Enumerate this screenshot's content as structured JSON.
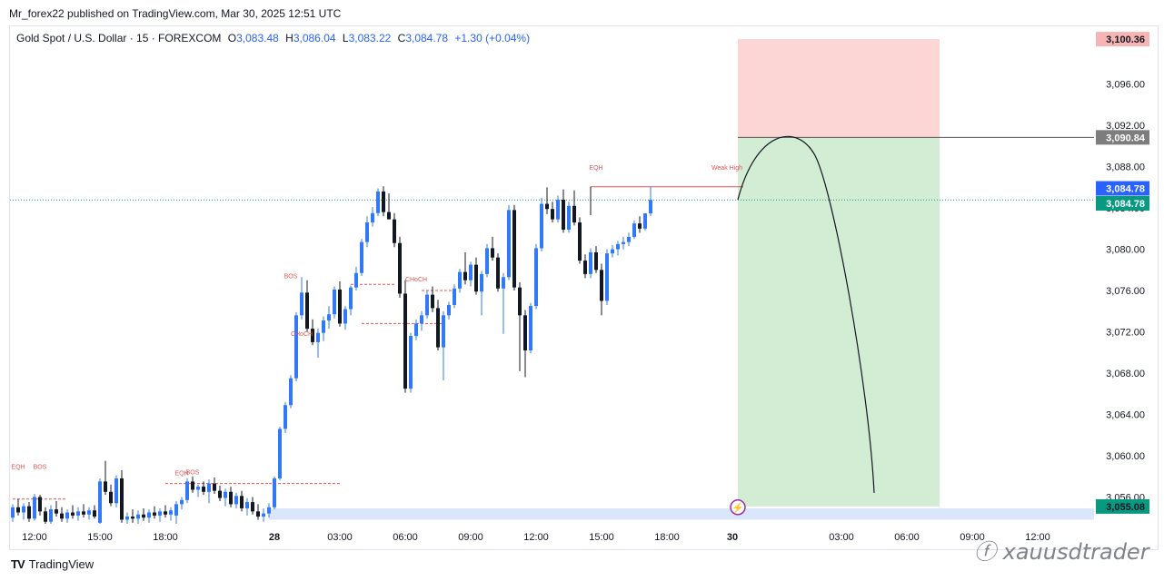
{
  "header": {
    "publish_line": "Mr_forex22 published on TradingView.com, Mar 30, 2025 12:51 UTC"
  },
  "legend": {
    "symbol": "Gold Spot / U.S. Dollar · 15 · FOREXCOM",
    "o_label": "O",
    "o": "3,083.48",
    "h_label": "H",
    "h": "3,086.04",
    "l_label": "L",
    "l": "3,083.22",
    "c_label": "C",
    "c": "3,084.78",
    "change": "+1.30 (+0.04%)"
  },
  "footer": {
    "brand": "TradingView",
    "watermark": "xauusdtrader"
  },
  "colors": {
    "up": "#3179f5",
    "down": "#131722",
    "risk_zone": "#fcd5d5",
    "reward_zone": "#d3ecd4",
    "demand_zone": "#dbe6fa",
    "structure": "#e05555",
    "price_tag_blue": "#2962ff",
    "price_tag_green": "#089981",
    "sl_tag": "#f7b4b4",
    "entry_tag": "#7d7d7d"
  },
  "chart_data": {
    "type": "candlestick",
    "symbol": "XAUUSD",
    "timeframe": "15",
    "ylim": [
      3053.4,
      3101.6
    ],
    "yticks": [
      3056,
      3060,
      3064,
      3068,
      3072,
      3076,
      3080,
      3084,
      3088,
      3092,
      3096
    ],
    "ytick_labels": [
      "3,056.00",
      "3,060.00",
      "3,064.00",
      "3,068.00",
      "3,072.00",
      "3,076.00",
      "3,080.00",
      "3,084.00",
      "3,088.00",
      "3,092.00",
      "3,096.00"
    ],
    "xtick_labels": [
      {
        "label": "12:00",
        "bar": 4,
        "bold": false
      },
      {
        "label": "15:00",
        "bar": 16,
        "bold": false
      },
      {
        "label": "18:00",
        "bar": 28,
        "bold": false
      },
      {
        "label": "28",
        "bar": 48,
        "bold": true
      },
      {
        "label": "03:00",
        "bar": 60,
        "bold": false
      },
      {
        "label": "06:00",
        "bar": 72,
        "bold": false
      },
      {
        "label": "09:00",
        "bar": 84,
        "bold": false
      },
      {
        "label": "12:00",
        "bar": 96,
        "bold": false
      },
      {
        "label": "15:00",
        "bar": 108,
        "bold": false
      },
      {
        "label": "18:00",
        "bar": 120,
        "bold": false
      },
      {
        "label": "30",
        "bar": 132,
        "bold": true
      },
      {
        "label": "03:00",
        "bar": 152,
        "bold": false
      },
      {
        "label": "06:00",
        "bar": 164,
        "bold": false
      },
      {
        "label": "09:00",
        "bar": 176,
        "bold": false
      },
      {
        "label": "12:00",
        "bar": 188,
        "bold": false
      }
    ],
    "candles": [
      [
        3054.0,
        3055.3,
        3053.6,
        3055.0
      ],
      [
        3055.0,
        3055.8,
        3054.2,
        3054.5
      ],
      [
        3054.5,
        3055.4,
        3053.8,
        3055.1
      ],
      [
        3055.1,
        3055.5,
        3053.6,
        3053.9
      ],
      [
        3053.9,
        3056.3,
        3053.7,
        3056.0
      ],
      [
        3056.0,
        3056.2,
        3054.2,
        3054.6
      ],
      [
        3054.6,
        3055.0,
        3053.3,
        3053.6
      ],
      [
        3053.6,
        3055.2,
        3053.4,
        3054.8
      ],
      [
        3054.8,
        3055.6,
        3054.1,
        3054.4
      ],
      [
        3054.4,
        3055.0,
        3053.6,
        3053.9
      ],
      [
        3053.9,
        3054.8,
        3053.5,
        3054.5
      ],
      [
        3054.5,
        3055.2,
        3053.9,
        3054.2
      ],
      [
        3054.2,
        3055.0,
        3053.7,
        3054.6
      ],
      [
        3054.6,
        3055.3,
        3054.0,
        3054.3
      ],
      [
        3054.3,
        3055.0,
        3053.8,
        3054.7
      ],
      [
        3054.7,
        3055.2,
        3053.9,
        3054.1
      ],
      [
        3053.5,
        3057.8,
        3053.2,
        3057.5
      ],
      [
        3057.5,
        3059.5,
        3056.2,
        3056.5
      ],
      [
        3056.5,
        3057.2,
        3055.1,
        3055.4
      ],
      [
        3055.4,
        3058.1,
        3055.0,
        3057.8
      ],
      [
        3057.8,
        3058.6,
        3053.5,
        3053.8
      ],
      [
        3053.8,
        3054.5,
        3053.3,
        3054.1
      ],
      [
        3054.1,
        3054.8,
        3053.5,
        3053.9
      ],
      [
        3053.9,
        3054.7,
        3053.4,
        3054.3
      ],
      [
        3054.3,
        3054.9,
        3053.7,
        3054.0
      ],
      [
        3054.0,
        3054.8,
        3053.5,
        3054.5
      ],
      [
        3054.5,
        3055.1,
        3053.9,
        3054.2
      ],
      [
        3054.2,
        3054.9,
        3053.6,
        3054.6
      ],
      [
        3054.6,
        3055.2,
        3054.0,
        3054.3
      ],
      [
        3054.3,
        3055.0,
        3053.7,
        3054.7
      ],
      [
        3054.2,
        3055.6,
        3053.4,
        3055.3
      ],
      [
        3055.3,
        3056.0,
        3054.8,
        3055.7
      ],
      [
        3055.7,
        3057.8,
        3055.4,
        3057.5
      ],
      [
        3057.5,
        3058.0,
        3056.4,
        3056.7
      ],
      [
        3056.7,
        3057.2,
        3056.0,
        3057.0
      ],
      [
        3057.0,
        3057.5,
        3056.2,
        3056.5
      ],
      [
        3056.5,
        3057.7,
        3055.4,
        3057.3
      ],
      [
        3057.3,
        3057.9,
        3056.3,
        3056.6
      ],
      [
        3056.6,
        3057.1,
        3055.6,
        3055.9
      ],
      [
        3055.9,
        3056.8,
        3055.1,
        3056.5
      ],
      [
        3056.5,
        3057.0,
        3055.0,
        3055.3
      ],
      [
        3055.3,
        3056.4,
        3054.9,
        3056.1
      ],
      [
        3056.1,
        3056.6,
        3054.6,
        3054.9
      ],
      [
        3054.9,
        3055.9,
        3054.2,
        3055.5
      ],
      [
        3055.5,
        3056.0,
        3054.3,
        3054.6
      ],
      [
        3054.6,
        3055.3,
        3053.8,
        3054.1
      ],
      [
        3054.1,
        3054.9,
        3053.6,
        3054.4
      ],
      [
        3054.4,
        3055.4,
        3054.0,
        3055.0
      ],
      [
        3055.0,
        3058.0,
        3054.8,
        3057.8
      ],
      [
        3057.8,
        3062.8,
        3057.6,
        3062.6
      ],
      [
        3062.6,
        3065.2,
        3062.2,
        3064.9
      ],
      [
        3064.9,
        3067.8,
        3064.6,
        3067.5
      ],
      [
        3067.5,
        3073.9,
        3067.2,
        3073.6
      ],
      [
        3073.6,
        3077.3,
        3073.2,
        3075.8
      ],
      [
        3075.8,
        3077.0,
        3072.0,
        3072.3
      ],
      [
        3072.3,
        3073.2,
        3070.7,
        3071.0
      ],
      [
        3071.0,
        3072.3,
        3069.5,
        3071.9
      ],
      [
        3071.9,
        3073.5,
        3071.1,
        3073.1
      ],
      [
        3073.1,
        3074.5,
        3072.3,
        3073.7
      ],
      [
        3073.7,
        3076.4,
        3073.3,
        3076.1
      ],
      [
        3076.1,
        3076.9,
        3072.5,
        3072.8
      ],
      [
        3072.8,
        3074.5,
        3072.2,
        3074.2
      ],
      [
        3074.2,
        3076.5,
        3073.6,
        3076.3
      ],
      [
        3076.3,
        3078.3,
        3076.0,
        3077.7
      ],
      [
        3077.7,
        3081.0,
        3077.4,
        3080.7
      ],
      [
        3080.7,
        3083.2,
        3080.2,
        3082.6
      ],
      [
        3082.6,
        3084.1,
        3082.2,
        3083.5
      ],
      [
        3083.5,
        3085.9,
        3083.2,
        3085.6
      ],
      [
        3085.6,
        3086.1,
        3083.2,
        3083.6
      ],
      [
        3083.6,
        3085.4,
        3083.1,
        3082.9
      ],
      [
        3082.9,
        3083.5,
        3080.2,
        3080.6
      ],
      [
        3080.6,
        3081.2,
        3075.3,
        3075.7
      ],
      [
        3075.7,
        3077.0,
        3066.1,
        3066.5
      ],
      [
        3066.5,
        3071.9,
        3066.1,
        3071.6
      ],
      [
        3071.6,
        3073.2,
        3071.2,
        3072.8
      ],
      [
        3072.8,
        3074.0,
        3072.1,
        3073.6
      ],
      [
        3073.6,
        3076.0,
        3073.3,
        3075.6
      ],
      [
        3075.6,
        3076.4,
        3073.9,
        3074.3
      ],
      [
        3074.3,
        3075.1,
        3070.2,
        3070.5
      ],
      [
        3070.5,
        3074.0,
        3067.3,
        3073.6
      ],
      [
        3073.6,
        3074.9,
        3073.2,
        3074.6
      ],
      [
        3074.6,
        3076.6,
        3074.3,
        3076.2
      ],
      [
        3076.2,
        3078.1,
        3075.8,
        3077.8
      ],
      [
        3077.8,
        3079.7,
        3076.6,
        3077.0
      ],
      [
        3077.0,
        3078.8,
        3076.4,
        3078.5
      ],
      [
        3078.5,
        3079.2,
        3075.6,
        3075.9
      ],
      [
        3075.9,
        3077.9,
        3073.6,
        3077.6
      ],
      [
        3077.6,
        3080.5,
        3077.3,
        3080.1
      ],
      [
        3080.1,
        3081.2,
        3078.9,
        3079.2
      ],
      [
        3079.2,
        3079.6,
        3075.9,
        3076.2
      ],
      [
        3076.2,
        3077.7,
        3071.8,
        3077.3
      ],
      [
        3077.3,
        3084.3,
        3077.0,
        3083.8
      ],
      [
        3083.8,
        3084.3,
        3076.0,
        3076.3
      ],
      [
        3076.3,
        3076.8,
        3068.2,
        3073.6
      ],
      [
        3073.6,
        3074.1,
        3067.6,
        3070.2
      ],
      [
        3070.2,
        3074.8,
        3069.9,
        3074.5
      ],
      [
        3074.5,
        3080.5,
        3074.2,
        3080.1
      ],
      [
        3080.1,
        3085.0,
        3079.8,
        3084.4
      ],
      [
        3084.4,
        3086.0,
        3083.4,
        3083.9
      ],
      [
        3083.9,
        3084.6,
        3082.6,
        3082.9
      ],
      [
        3082.9,
        3085.2,
        3082.6,
        3084.8
      ],
      [
        3084.8,
        3085.8,
        3081.6,
        3081.9
      ],
      [
        3081.9,
        3084.6,
        3081.6,
        3084.2
      ],
      [
        3084.2,
        3085.7,
        3082.3,
        3082.6
      ],
      [
        3082.6,
        3083.1,
        3078.6,
        3078.9
      ],
      [
        3078.9,
        3079.5,
        3077.2,
        3077.6
      ],
      [
        3077.6,
        3080.1,
        3077.2,
        3079.7
      ],
      [
        3079.7,
        3080.3,
        3077.7,
        3078.0
      ],
      [
        3078.0,
        3078.6,
        3073.6,
        3075.0
      ],
      [
        3075.0,
        3080.0,
        3074.6,
        3079.6
      ],
      [
        3079.6,
        3080.4,
        3079.2,
        3080.0
      ],
      [
        3080.0,
        3080.8,
        3079.4,
        3080.5
      ],
      [
        3080.5,
        3081.2,
        3080.0,
        3080.7
      ],
      [
        3080.7,
        3081.6,
        3080.3,
        3081.2
      ],
      [
        3081.2,
        3082.8,
        3081.0,
        3082.5
      ],
      [
        3082.5,
        3083.2,
        3081.6,
        3082.0
      ],
      [
        3082.0,
        3083.0,
        3081.8,
        3083.48
      ],
      [
        3083.48,
        3086.04,
        3083.22,
        3084.78
      ]
    ],
    "annotations": {
      "structure_labels": [
        {
          "text": "EQH",
          "bar": 1,
          "price": 3058.7
        },
        {
          "text": "BOS",
          "bar": 5,
          "price": 3058.7
        },
        {
          "text": "EQH",
          "bar": 31,
          "price": 3058.1
        },
        {
          "text": "BOS",
          "bar": 33,
          "price": 3058.2
        },
        {
          "text": "BOS",
          "bar": 51,
          "price": 3077.2
        },
        {
          "text": "CHoCH",
          "bar": 53,
          "price": 3071.6
        },
        {
          "text": "CHoCH",
          "bar": 74,
          "price": 3076.9
        },
        {
          "text": "EQH",
          "bar": 107,
          "price": 3087.7
        },
        {
          "text": "Weak High",
          "bar": 131,
          "price": 3087.7
        }
      ],
      "structure_lines": [
        {
          "from_bar": 0,
          "to_bar": 10,
          "price": 3055.8,
          "dashed": true
        },
        {
          "from_bar": 28,
          "to_bar": 47,
          "price": 3057.3,
          "dashed": true
        },
        {
          "from_bar": 47,
          "to_bar": 60,
          "price": 3057.3,
          "dashed": true
        },
        {
          "from_bar": 62,
          "to_bar": 70,
          "price": 3076.6,
          "dashed": true
        },
        {
          "from_bar": 64,
          "to_bar": 79,
          "price": 3072.8,
          "dashed": true
        },
        {
          "from_bar": 75,
          "to_bar": 81,
          "price": 3076.0,
          "dashed": true
        },
        {
          "from_bar": 106,
          "to_bar": 134,
          "price": 3086.05,
          "dashed": false
        }
      ],
      "short_position": {
        "entry": 3090.84,
        "stop_loss": 3100.36,
        "target": 3055.08,
        "from_bar": 133,
        "to_bar": 170
      },
      "demand_zone": {
        "top": 3054.9,
        "bottom": 3053.8,
        "from_bar": 47
      },
      "projection_path": {
        "start": {
          "bar": 133,
          "price": 3084.8
        },
        "peak": {
          "bar": 142,
          "price": 3091.0
        },
        "end": {
          "bar": 158,
          "price": 3056.4
        }
      },
      "price_tags": [
        {
          "value": "3,100.36",
          "price": 3100.36,
          "role": "stop"
        },
        {
          "value": "3,090.84",
          "price": 3090.84,
          "role": "entry"
        },
        {
          "value": "3,084.78",
          "price": 3085.9,
          "role": "last-blue"
        },
        {
          "value": "3,084.78",
          "price": 3084.45,
          "role": "last-green"
        },
        {
          "value": "3,055.08",
          "price": 3055.08,
          "role": "target"
        }
      ]
    }
  }
}
